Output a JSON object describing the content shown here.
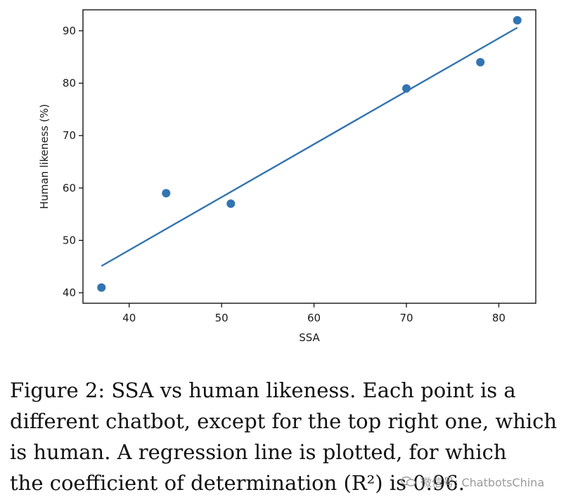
{
  "chart_data": {
    "type": "scatter",
    "title": "",
    "xlabel": "SSA",
    "ylabel": "Human likeness (%)",
    "xlim": [
      35,
      84
    ],
    "ylim": [
      38,
      94
    ],
    "xticks": [
      40,
      50,
      60,
      70,
      80
    ],
    "yticks": [
      40,
      50,
      60,
      70,
      80,
      90
    ],
    "points": [
      {
        "x": 37,
        "y": 41
      },
      {
        "x": 44,
        "y": 59
      },
      {
        "x": 51,
        "y": 57
      },
      {
        "x": 70,
        "y": 79
      },
      {
        "x": 78,
        "y": 84
      },
      {
        "x": 82,
        "y": 92
      }
    ],
    "regression_line": {
      "x": [
        37,
        82
      ],
      "y": [
        45.1,
        90.6
      ]
    },
    "series_color": "#3274b1",
    "grid": false
  },
  "caption": {
    "lines": [
      "Figure 2:  SSA vs human likeness.  Each point is a",
      "different chatbot, except for the top right one, which",
      "is human.   A regression line is plotted, for which",
      "the coefficient of determination (R²) is 0.96."
    ]
  },
  "watermark": {
    "text": "微信号: ChatbotsChina",
    "icon": "wechat-icon"
  }
}
